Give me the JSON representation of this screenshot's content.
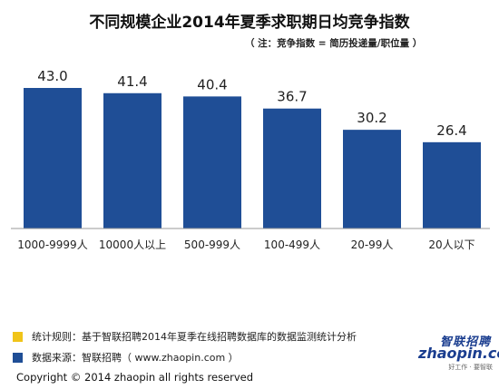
{
  "title": "不同规模企业2014年夏季求职期日均竞争指数",
  "subtitle": "（ 注：竞争指数 = 简历投递量/职位量 ）",
  "colors": {
    "bar": "#1f4e96",
    "note_swatch": "#f0c419",
    "source_swatch": "#1f4e96",
    "axis": "#999999",
    "logo": "#1a3d8f"
  },
  "chart_data": {
    "type": "bar",
    "categories": [
      "1000-9999人",
      "10000人以上",
      "500-999人",
      "100-499人",
      "20-99人",
      "20人以下"
    ],
    "values": [
      43.0,
      41.4,
      40.4,
      36.7,
      30.2,
      26.4
    ],
    "data_labels": [
      "43.0",
      "41.4",
      "40.4",
      "36.7",
      "30.2",
      "26.4"
    ],
    "title": "不同规模企业2014年夏季求职期日均竞争指数",
    "xlabel": "",
    "ylabel": "",
    "ylim": [
      0,
      50
    ],
    "grid": false,
    "legend": "none"
  },
  "footer": {
    "note": "统计规则：基于智联招聘2014年夏季在线招聘数据库的数据监测统计分析",
    "source": "数据来源：智联招聘（ www.zhaopin.com ）",
    "copyright": "Copyright  ©  2014  zhaopin all rights reserved"
  },
  "logo": {
    "cn": "智联招聘",
    "en": "zhaopin.com",
    "tag": "好工作 · 要智联"
  }
}
